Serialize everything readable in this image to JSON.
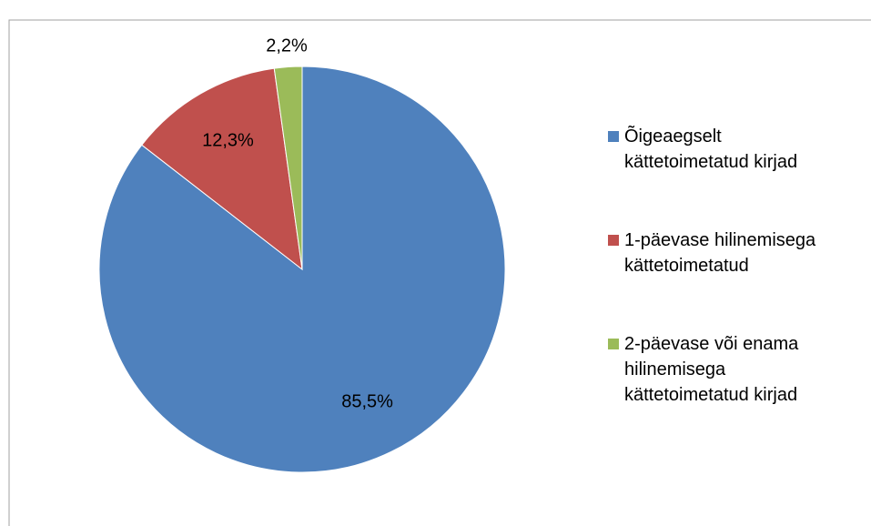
{
  "chart_data": {
    "type": "pie",
    "categories": [
      "Õigeaegselt kättetoimetatud kirjad",
      "1-päevase hilinemisega kättetoimetatud",
      "2-päevase või enama hilinemisega kättetoimetatud kirjad"
    ],
    "values": [
      85.5,
      12.3,
      2.2
    ],
    "value_labels": [
      "85,5%",
      "12,3%",
      "2,2%"
    ],
    "colors": [
      "#4f81bd",
      "#c0504d",
      "#9bbb59"
    ],
    "legend": "right"
  }
}
